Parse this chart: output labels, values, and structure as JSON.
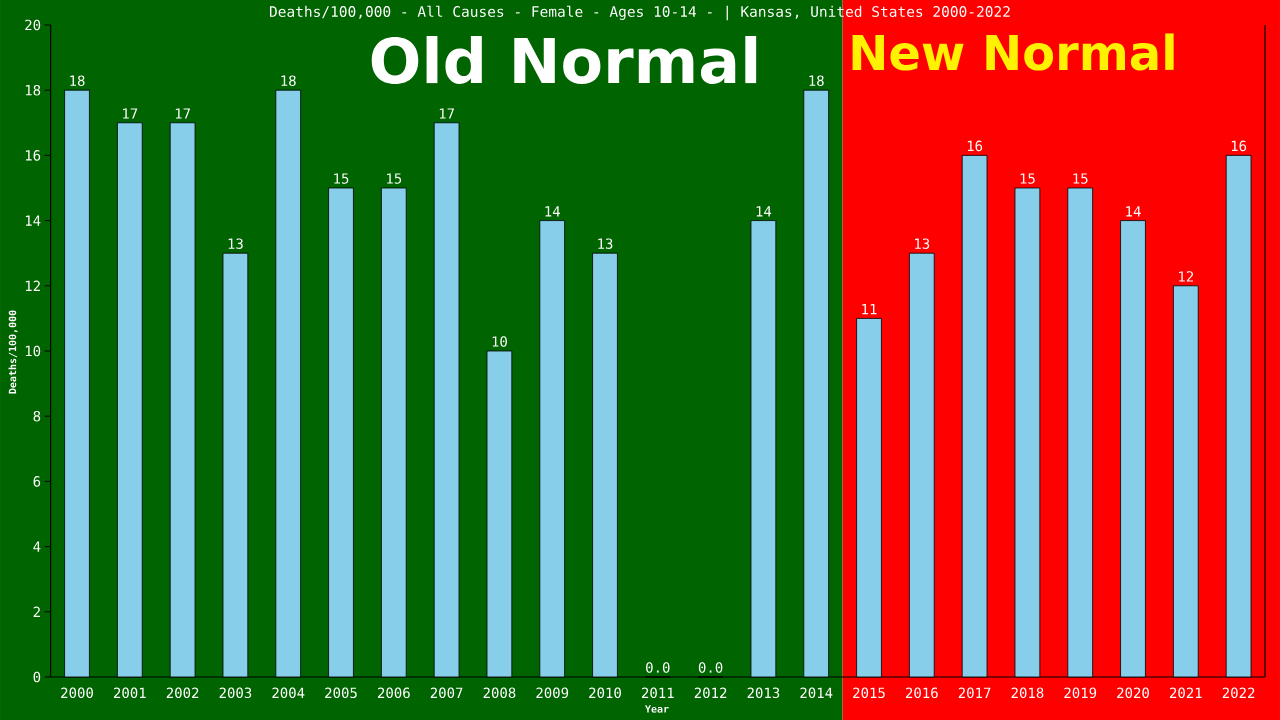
{
  "chart_data": {
    "type": "bar",
    "title": "Deaths/100,000 - All Causes - Female - Ages 10-14 - | Kansas, United States 2000-2022",
    "xlabel": "Year",
    "ylabel": "Deaths/100,000",
    "categories": [
      "2000",
      "2001",
      "2002",
      "2003",
      "2004",
      "2005",
      "2006",
      "2007",
      "2008",
      "2009",
      "2010",
      "2011",
      "2012",
      "2013",
      "2014",
      "2015",
      "2016",
      "2017",
      "2018",
      "2019",
      "2020",
      "2021",
      "2022"
    ],
    "values": [
      18,
      17,
      17,
      13,
      18,
      15,
      15,
      17,
      10,
      14,
      13,
      0,
      0,
      14,
      18,
      11,
      13,
      16,
      15,
      15,
      14,
      12,
      16
    ],
    "value_labels": [
      "18",
      "17",
      "17",
      "13",
      "18",
      "15",
      "15",
      "17",
      "10",
      "14",
      "13",
      "0.0",
      "0.0",
      "14",
      "18",
      "11",
      "13",
      "16",
      "15",
      "15",
      "14",
      "12",
      "16"
    ],
    "color": "#87ceeb",
    "ylim": [
      0,
      20
    ],
    "yticks": [
      0,
      2,
      4,
      6,
      8,
      10,
      12,
      14,
      16,
      18,
      20
    ],
    "bands": [
      {
        "axis": "x",
        "from": "2000",
        "to": "2014",
        "label": "Old Normal",
        "color": "#006400"
      },
      {
        "axis": "x",
        "from": "2015",
        "to": "2022",
        "label": "New Normal",
        "color": "#ff0000"
      }
    ]
  }
}
